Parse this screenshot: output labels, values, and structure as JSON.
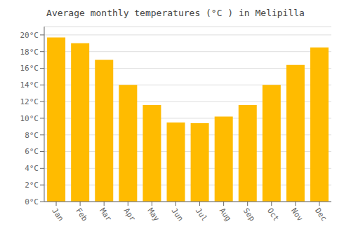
{
  "chart_data": {
    "type": "bar",
    "title": "Average monthly temperatures (°C ) in Melipilla",
    "categories": [
      "Jan",
      "Feb",
      "Mar",
      "Apr",
      "May",
      "Jun",
      "Jul",
      "Aug",
      "Sep",
      "Oct",
      "Nov",
      "Dec"
    ],
    "values": [
      19.7,
      19.0,
      17.0,
      14.0,
      11.6,
      9.5,
      9.4,
      10.2,
      11.6,
      14.0,
      16.4,
      18.5
    ],
    "color": "#FFBB00",
    "ylim": [
      0,
      21
    ],
    "yticks": [
      {
        "value": 0,
        "label": "0°C"
      },
      {
        "value": 2,
        "label": "2°C"
      },
      {
        "value": 4,
        "label": "4°C"
      },
      {
        "value": 6,
        "label": "6°C"
      },
      {
        "value": 8,
        "label": "8°C"
      },
      {
        "value": 10,
        "label": "10°C"
      },
      {
        "value": 12,
        "label": "12°C"
      },
      {
        "value": 14,
        "label": "14°C"
      },
      {
        "value": 16,
        "label": "16°C"
      },
      {
        "value": 18,
        "label": "18°C"
      },
      {
        "value": 20,
        "label": "20°C"
      }
    ],
    "grid": true
  }
}
